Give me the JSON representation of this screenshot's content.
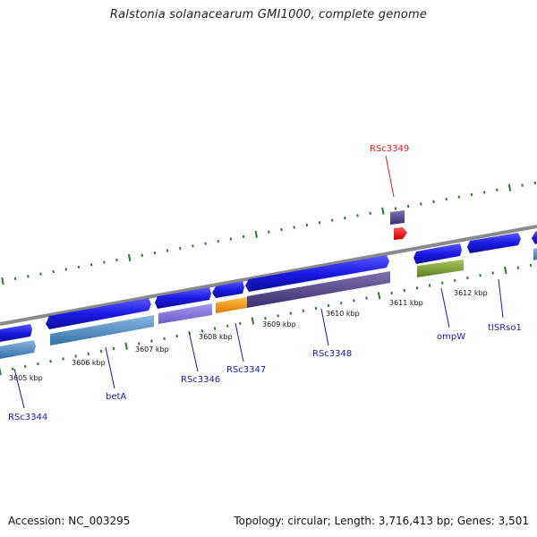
{
  "title": "Ralstonia solanacearum GMI1000, complete genome",
  "footer": {
    "accession": "Accession: NC_003295",
    "summary": "Topology: circular; Length: 3,716,413 bp; Genes: 3,501"
  },
  "kbp_labels": [
    "3605 kbp",
    "3606 kbp",
    "3607 kbp",
    "3608 kbp",
    "3609 kbp",
    "3610 kbp",
    "3611 kbp",
    "3612 kbp"
  ],
  "gene_labels": [
    "RSc3344",
    "betA",
    "RSc3346",
    "RSc3347",
    "RSc3348",
    "ompW",
    "tISRso1",
    "RSc3349"
  ],
  "colors": {
    "cds_blue": "#1a1ae6",
    "backbone": "#8a8a8a",
    "tick_green": "#2a7a2a",
    "label_blue": "#1a1aa6",
    "label_red": "#e02020"
  }
}
